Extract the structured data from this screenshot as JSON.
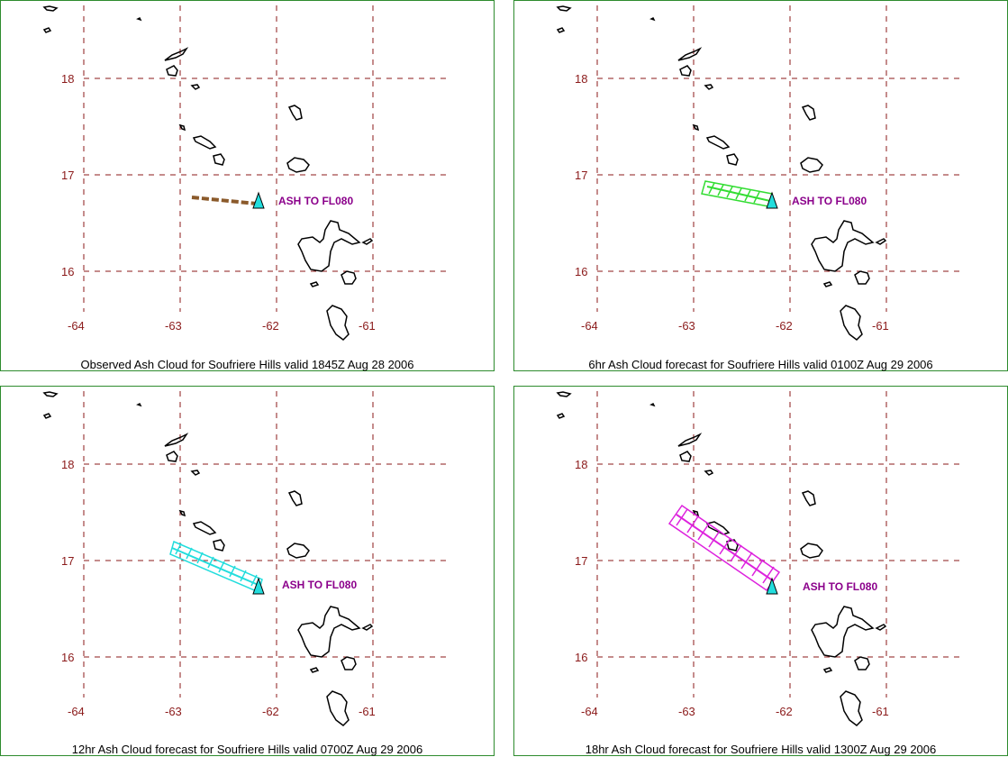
{
  "panels": [
    {
      "caption": "Observed Ash Cloud for Soufriere  Hills valid 1845Z Aug 28 2006",
      "ash_label": "ASH TO FL080",
      "cloud_color": "#8b5a2b",
      "cloud_style": "dashed-line"
    },
    {
      "caption": "6hr Ash Cloud forecast for Soufriere  Hills valid 0100Z Aug 29 2006",
      "ash_label": "ASH TO FL080",
      "cloud_color": "#33dd33",
      "cloud_style": "hatched"
    },
    {
      "caption": "12hr Ash Cloud forecast for Soufriere  Hills valid 0700Z Aug 29 2006",
      "ash_label": "ASH TO FL080",
      "cloud_color": "#22dddd",
      "cloud_style": "hatched"
    },
    {
      "caption": "18hr Ash Cloud forecast for Soufriere  Hills valid 1300Z Aug 29 2006",
      "ash_label": "ASH TO FL080",
      "cloud_color": "#dd22dd",
      "cloud_style": "hatched"
    }
  ],
  "grid": {
    "lat_labels": [
      "18",
      "17",
      "16"
    ],
    "lon_labels": [
      "-64",
      "-63",
      "-62",
      "-61"
    ],
    "grid_color": "#8b1a1a"
  },
  "volcano_marker_color": "#22dddd"
}
